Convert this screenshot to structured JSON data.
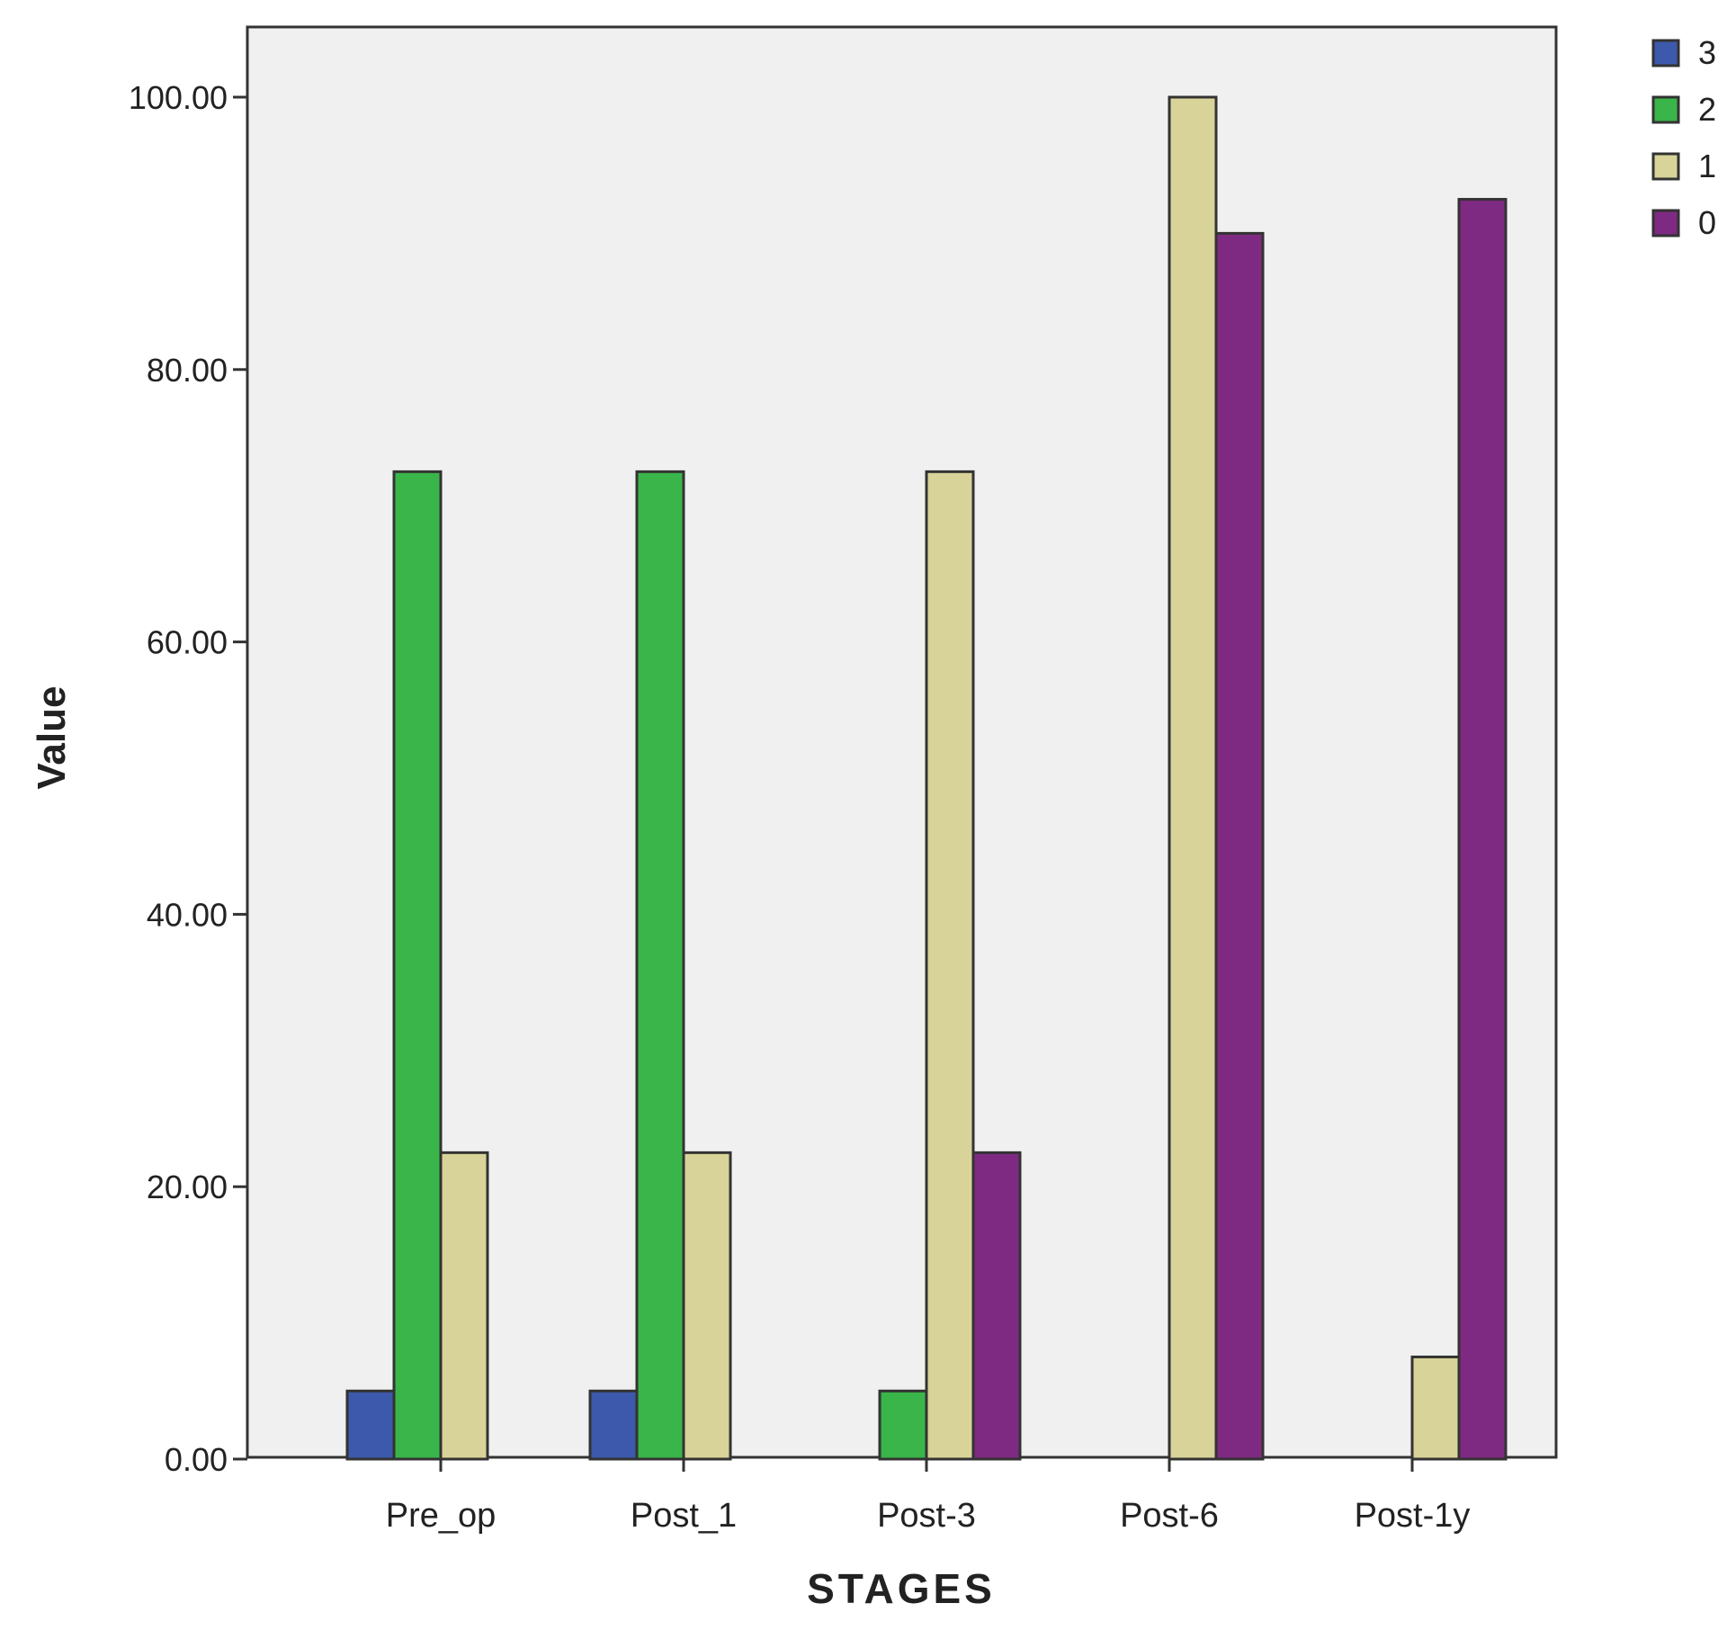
{
  "chart_data": {
    "type": "bar",
    "title": "",
    "xlabel": "STAGES",
    "ylabel": "Value",
    "categories": [
      "Pre_op",
      "Post_1",
      "Post-3",
      "Post-6",
      "Post-1y"
    ],
    "series": [
      {
        "name": "3",
        "color": "#3d59ab",
        "values": [
          5,
          5,
          0,
          0,
          0
        ]
      },
      {
        "name": "2",
        "color": "#3ab54a",
        "values": [
          72.5,
          72.5,
          5,
          0,
          0
        ]
      },
      {
        "name": "1",
        "color": "#d8d398",
        "values": [
          22.5,
          22.5,
          72.5,
          100,
          7.5
        ]
      },
      {
        "name": "0",
        "color": "#7f2a82",
        "values": [
          0,
          0,
          22.5,
          90,
          92.5
        ]
      }
    ],
    "ylim": [
      0,
      105
    ],
    "yticks": [
      0,
      20,
      40,
      60,
      80,
      100
    ],
    "ytick_labels": [
      "0.00",
      "20.00",
      "40.00",
      "60.00",
      "80.00",
      "100.00"
    ],
    "grid": false,
    "legend_position": "top-right",
    "plot_background": "#f0f0f0",
    "bar_outline": "#333333"
  }
}
